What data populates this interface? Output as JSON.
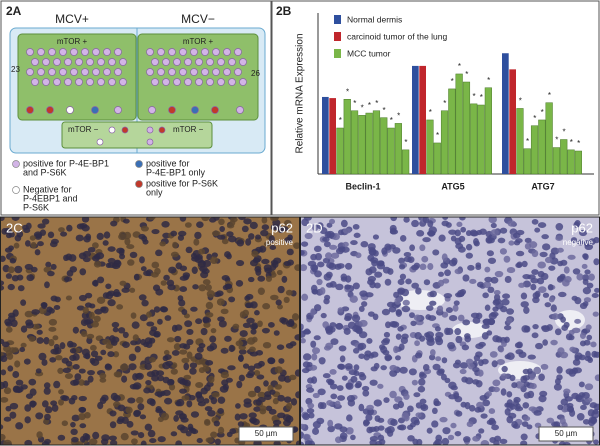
{
  "diagram": {
    "label": "2A",
    "columns": [
      "MCV+",
      "MCV−"
    ],
    "pos_boxes": [
      "mTOR +",
      "mTOR +"
    ],
    "counts": [
      23,
      26
    ],
    "neg_boxes": [
      "mTOR −",
      "mTOR −"
    ],
    "legend": [
      [
        "positive for P-4E-BP1",
        "and P-S6K"
      ],
      [
        "Negative for",
        "P-4EBP1 and",
        "P-S6K"
      ],
      [
        "positive for",
        "P-4E-BP1 only"
      ],
      [
        "positive for P-S6K",
        "only"
      ]
    ]
  },
  "chart_label": "2B",
  "chart_data": {
    "type": "bar",
    "ylabel": "Relative mRNA Expression",
    "categories": [
      "Beclin-1",
      "ATG5",
      "ATG7"
    ],
    "series": [
      {
        "name": "Normal dermis",
        "color": "#2e4f9e",
        "values": [
          0.67,
          0.94,
          1.05
        ]
      },
      {
        "name": "carcinoid tumor of the lung",
        "color": "#c0262c",
        "values": [
          0.66,
          0.94,
          0.91
        ]
      },
      {
        "name": "MCC tumor",
        "color": "#7ab648",
        "values": [
          [
            0.4,
            0.65,
            0.55,
            0.51,
            0.53,
            0.55,
            0.49,
            0.4,
            0.44,
            0.21
          ],
          [
            0.47,
            0.27,
            0.55,
            0.74,
            0.87,
            0.8,
            0.61,
            0.6,
            0.75
          ],
          [
            0.57,
            0.22,
            0.42,
            0.47,
            0.62,
            0.23,
            0.3,
            0.21,
            0.2
          ]
        ]
      }
    ],
    "significance_marker": "*",
    "ylim": [
      0,
      1.4
    ]
  },
  "micrographs": [
    {
      "label": "2C",
      "marker": "p62",
      "status": "positive",
      "scale": "50 µm"
    },
    {
      "label": "2D",
      "marker": "p62",
      "status": "negative",
      "scale": "50 µm"
    }
  ]
}
